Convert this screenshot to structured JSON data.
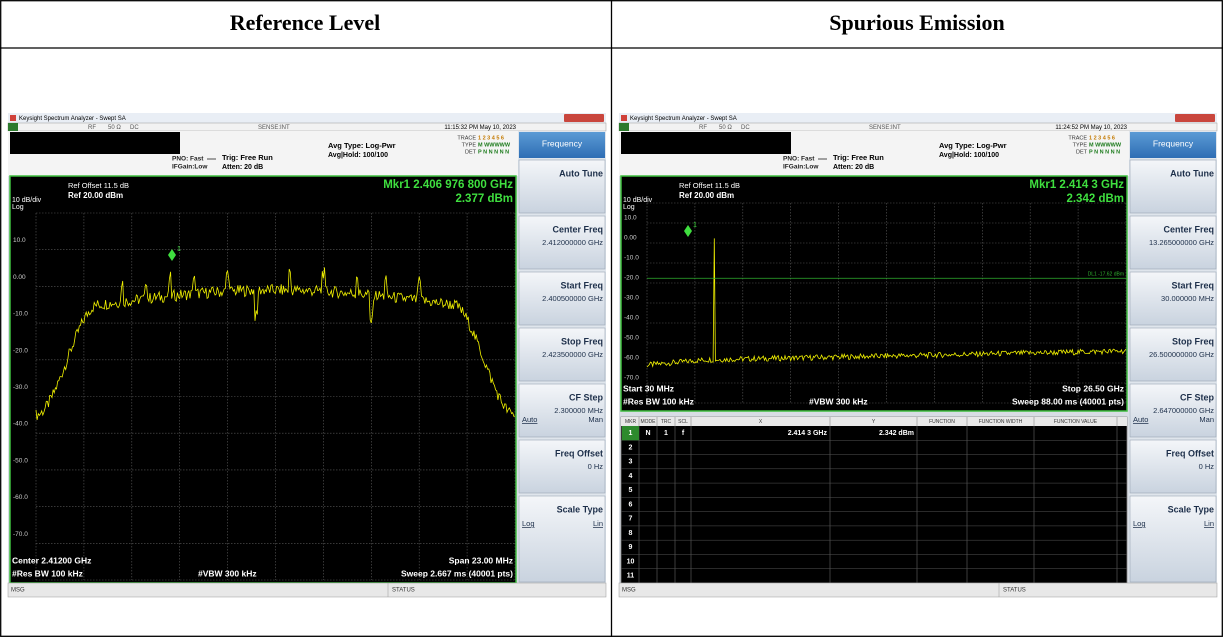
{
  "header": [
    "Reference Level",
    "Spurious Emission"
  ],
  "panels": [
    {
      "window_title": "Keysight Spectrum Analyzer - Swept SA",
      "status_row": {
        "rf": "RF",
        "impedance": "50 Ω",
        "coupling": "DC",
        "sense": "SENSE:INT",
        "time": "11:15:32 PM May 10, 2023"
      },
      "settings": {
        "pno": "PNO: Fast",
        "ifgain": "IFGain:Low",
        "trig": "Trig: Free Run",
        "atten": "Atten: 20 dB",
        "avg_type": "Avg Type: Log-Pwr",
        "avg_hold": "Avg|Hold: 100/100"
      },
      "trace_info": {
        "labels": [
          "TRACE",
          "TYPE",
          "DET"
        ],
        "values": [
          "1 2 3 4 5 6",
          "M WWWWW",
          "P N N N N N"
        ]
      },
      "ref_offset": "Ref Offset 11.5 dB",
      "scale": "10 dB/div",
      "ref": "Ref 20.00 dBm",
      "log": "Log",
      "marker": "Mkr1 2.406 976 800 GHz",
      "marker_value": "2.377 dBm",
      "marker_id": "1",
      "y_labels": [
        "10.0",
        "0.00",
        "-10.0",
        "-20.0",
        "-30.0",
        "-40.0",
        "-50.0",
        "-60.0",
        "-70.0"
      ],
      "footer": {
        "start": "Center 2.41200 GHz",
        "stop": "Span 23.00 MHz",
        "rbw": "#Res BW 100 kHz",
        "vbw": "#VBW 300 kHz",
        "sweep": "Sweep  2.667 ms (40001 pts)"
      },
      "menu_title": "Frequency",
      "softkeys": [
        {
          "label": "Auto Tune"
        },
        {
          "label": "Center Freq",
          "value": "2.412000000 GHz"
        },
        {
          "label": "Start Freq",
          "value": "2.400500000 GHz"
        },
        {
          "label": "Stop Freq",
          "value": "2.423500000 GHz"
        },
        {
          "label": "CF Step",
          "value": "2.300000 MHz",
          "options": [
            "Auto",
            "Man"
          ]
        },
        {
          "label": "Freq Offset",
          "value": "0 Hz"
        },
        {
          "label": "Scale Type",
          "options": [
            "Log",
            "Lin"
          ]
        }
      ],
      "msg": "MSG",
      "status": "STATUS"
    },
    {
      "window_title": "Keysight Spectrum Analyzer - Swept SA",
      "status_row": {
        "rf": "RF",
        "impedance": "50 Ω",
        "coupling": "DC",
        "sense": "SENSE:INT",
        "time": "11:24:52 PM May 10, 2023"
      },
      "settings": {
        "pno": "PNO: Fast",
        "ifgain": "IFGain:Low",
        "trig": "Trig: Free Run",
        "atten": "Atten: 20 dB",
        "avg_type": "Avg Type: Log-Pwr",
        "avg_hold": "Avg|Hold: 100/100"
      },
      "trace_info": {
        "labels": [
          "TRACE",
          "TYPE",
          "DET"
        ],
        "values": [
          "1 2 3 4 5 6",
          "M WWWWW",
          "P N N N N N"
        ]
      },
      "ref_offset": "Ref Offset 11.5 dB",
      "scale": "10 dB/div",
      "ref": "Ref 20.00 dBm",
      "log": "Log",
      "marker": "Mkr1 2.414 3 GHz",
      "marker_value": "2.342 dBm",
      "marker_id": "1",
      "y_labels": [
        "10.0",
        "0.00",
        "-10.0",
        "-20.0",
        "-30.0",
        "-40.0",
        "-50.0",
        "-60.0",
        "-70.0"
      ],
      "display_line": "DL1 -17.62 dBm",
      "footer": {
        "start": "Start 30 MHz",
        "stop": "Stop 26.50 GHz",
        "rbw": "#Res BW 100 kHz",
        "vbw": "#VBW 300 kHz",
        "sweep": "Sweep  88.00 ms (40001 pts)"
      },
      "marker_table": {
        "columns": [
          "MKR",
          "MODE",
          "TRC",
          "SCL",
          "X",
          "Y",
          "FUNCTION",
          "FUNCTION WIDTH",
          "FUNCTION VALUE"
        ],
        "rows": [
          [
            "1",
            "N",
            "1",
            "f",
            "2.414 3 GHz",
            "2.342 dBm"
          ],
          [
            "2"
          ],
          [
            "3"
          ],
          [
            "4"
          ],
          [
            "5"
          ],
          [
            "6"
          ],
          [
            "7"
          ],
          [
            "8"
          ],
          [
            "9"
          ],
          [
            "10"
          ],
          [
            "11"
          ]
        ]
      },
      "menu_title": "Frequency",
      "softkeys": [
        {
          "label": "Auto Tune"
        },
        {
          "label": "Center Freq",
          "value": "13.265000000 GHz"
        },
        {
          "label": "Start Freq",
          "value": "30.000000 MHz"
        },
        {
          "label": "Stop Freq",
          "value": "26.500000000 GHz"
        },
        {
          "label": "CF Step",
          "value": "2.647000000 GHz",
          "options": [
            "Auto",
            "Man"
          ]
        },
        {
          "label": "Freq Offset",
          "value": "0 Hz"
        },
        {
          "label": "Scale Type",
          "options": [
            "Log",
            "Lin"
          ]
        }
      ],
      "msg": "MSG",
      "status": "STATUS"
    }
  ]
}
